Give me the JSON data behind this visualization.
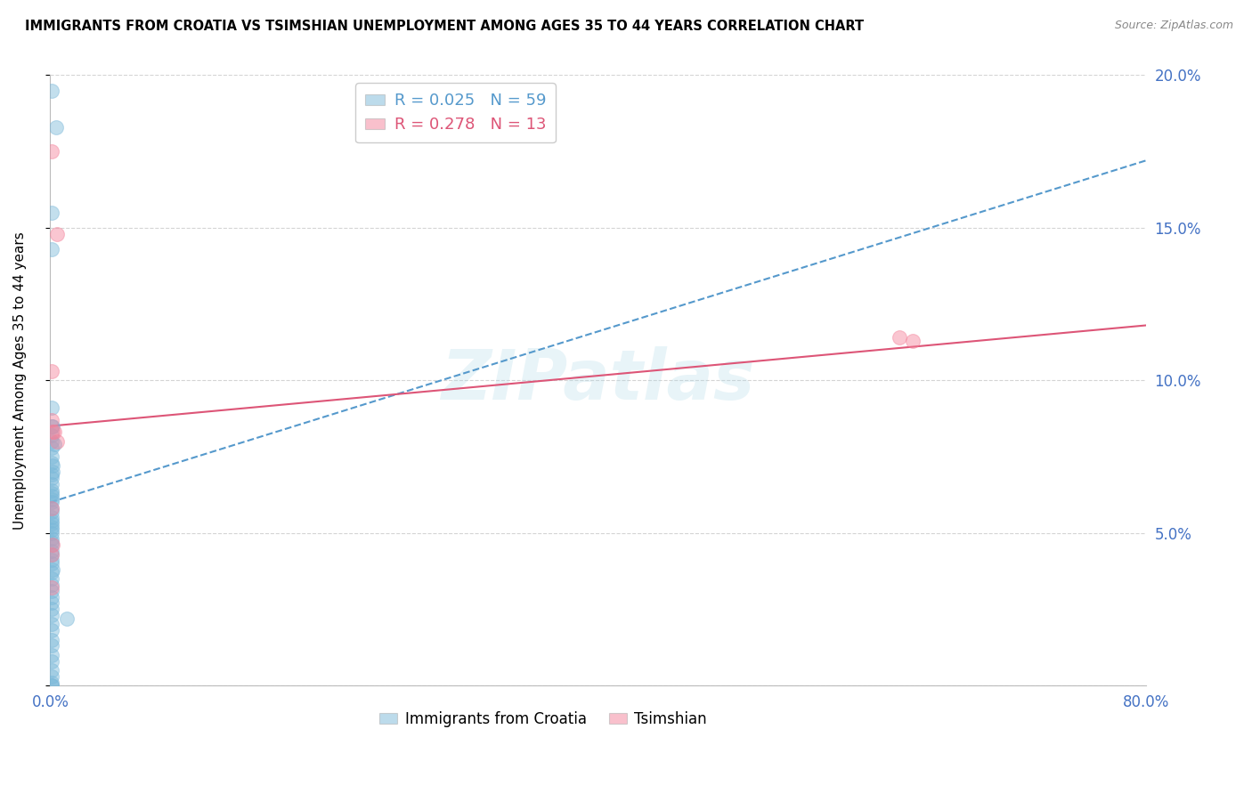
{
  "title": "IMMIGRANTS FROM CROATIA VS TSIMSHIAN UNEMPLOYMENT AMONG AGES 35 TO 44 YEARS CORRELATION CHART",
  "source": "Source: ZipAtlas.com",
  "ylabel": "Unemployment Among Ages 35 to 44 years",
  "xlim": [
    0.0,
    0.8
  ],
  "ylim": [
    0.0,
    0.2
  ],
  "xtick_positions": [
    0.0,
    0.1,
    0.2,
    0.3,
    0.4,
    0.5,
    0.6,
    0.7,
    0.8
  ],
  "xtick_labels": [
    "0.0%",
    "",
    "",
    "",
    "",
    "",
    "",
    "",
    "80.0%"
  ],
  "ytick_positions": [
    0.0,
    0.05,
    0.1,
    0.15,
    0.2
  ],
  "ytick_labels": [
    "",
    "5.0%",
    "10.0%",
    "15.0%",
    "20.0%"
  ],
  "blue_color": "#7ab8d9",
  "pink_color": "#f4829a",
  "trendline_blue_color": "#5599cc",
  "trendline_pink_color": "#dd5577",
  "axis_label_color": "#4472c4",
  "R_blue": 0.025,
  "N_blue": 59,
  "R_pink": 0.278,
  "N_pink": 13,
  "watermark": "ZIPatlas",
  "blue_scatter_x": [
    0.001,
    0.004,
    0.001,
    0.001,
    0.001,
    0.001,
    0.002,
    0.001,
    0.001,
    0.003,
    0.001,
    0.001,
    0.001,
    0.002,
    0.002,
    0.001,
    0.001,
    0.001,
    0.001,
    0.001,
    0.001,
    0.001,
    0.001,
    0.001,
    0.001,
    0.001,
    0.001,
    0.001,
    0.001,
    0.001,
    0.001,
    0.001,
    0.001,
    0.001,
    0.001,
    0.001,
    0.001,
    0.001,
    0.002,
    0.001,
    0.001,
    0.001,
    0.001,
    0.001,
    0.001,
    0.001,
    0.001,
    0.001,
    0.001,
    0.001,
    0.001,
    0.001,
    0.001,
    0.001,
    0.012,
    0.001,
    0.001,
    0.001,
    0.001
  ],
  "blue_scatter_y": [
    0.195,
    0.183,
    0.155,
    0.143,
    0.091,
    0.085,
    0.085,
    0.082,
    0.08,
    0.079,
    0.078,
    0.075,
    0.073,
    0.072,
    0.07,
    0.069,
    0.068,
    0.066,
    0.064,
    0.063,
    0.062,
    0.061,
    0.06,
    0.058,
    0.057,
    0.055,
    0.054,
    0.053,
    0.052,
    0.051,
    0.05,
    0.048,
    0.047,
    0.046,
    0.044,
    0.043,
    0.041,
    0.04,
    0.038,
    0.037,
    0.035,
    0.033,
    0.031,
    0.029,
    0.027,
    0.025,
    0.023,
    0.02,
    0.018,
    0.015,
    0.013,
    0.01,
    0.008,
    0.005,
    0.022,
    0.003,
    0.001,
    0.0,
    0.0
  ],
  "pink_scatter_x": [
    0.001,
    0.005,
    0.001,
    0.001,
    0.002,
    0.005,
    0.001,
    0.002,
    0.001,
    0.62,
    0.63,
    0.001,
    0.003
  ],
  "pink_scatter_y": [
    0.175,
    0.148,
    0.103,
    0.087,
    0.083,
    0.08,
    0.058,
    0.046,
    0.043,
    0.114,
    0.113,
    0.032,
    0.083
  ],
  "blue_trend_x": [
    0.0,
    0.8
  ],
  "blue_trend_y": [
    0.06,
    0.172
  ],
  "pink_trend_x": [
    0.0,
    0.8
  ],
  "pink_trend_y": [
    0.085,
    0.118
  ],
  "figsize": [
    14.06,
    8.92
  ],
  "dpi": 100
}
